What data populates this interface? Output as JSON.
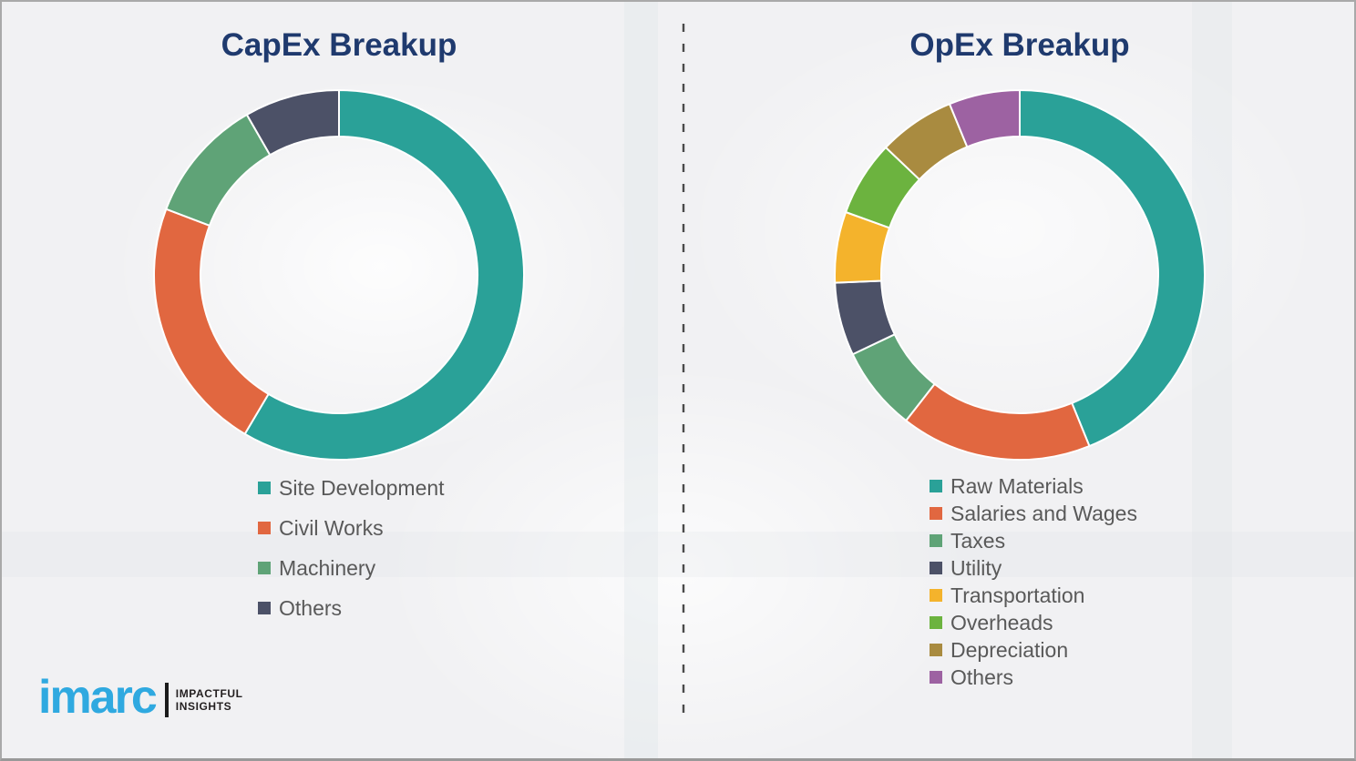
{
  "page": {
    "background_color": "#f1f1f3",
    "border_color": "#a9a9a9",
    "title_color": "#1f3a6e",
    "legend_text_color": "#595959",
    "divider_style": "vertical dashed line"
  },
  "chart_data": [
    {
      "id": "capex",
      "type": "pie",
      "variant": "donut",
      "title": "CapEx Breakup",
      "labels": [
        "Site Development",
        "Civil Works",
        "Machinery",
        "Others"
      ],
      "values": [
        58.5,
        22.3,
        10.9,
        8.3
      ],
      "colors": [
        "#2aa198",
        "#e16740",
        "#5fa377",
        "#4c5167"
      ],
      "start_angle_deg": 0,
      "direction": "clockwise",
      "legend_position": "below-left",
      "units": "percent-of-total (estimated from arc angles; no numeric labels shown)"
    },
    {
      "id": "opex",
      "type": "pie",
      "variant": "donut",
      "title": "OpEx Breakup",
      "labels": [
        "Raw Materials",
        "Salaries and Wages",
        "Taxes",
        "Utility",
        "Transportation",
        "Overheads",
        "Depreciation",
        "Others"
      ],
      "values": [
        43.9,
        16.7,
        7.4,
        6.4,
        6.2,
        6.6,
        6.7,
        6.2
      ],
      "colors": [
        "#2aa198",
        "#e16740",
        "#5fa377",
        "#4c5167",
        "#f4b32c",
        "#6cb33f",
        "#a98b40",
        "#9d62a2"
      ],
      "start_angle_deg": 0,
      "direction": "clockwise",
      "legend_position": "below-left",
      "units": "percent-of-total (estimated from arc angles; no numeric labels shown)"
    }
  ],
  "branding": {
    "logo_text": "imarc",
    "logo_color": "#2fa9e0",
    "tagline_line1": "IMPACTFUL",
    "tagline_line2": "INSIGHTS"
  }
}
